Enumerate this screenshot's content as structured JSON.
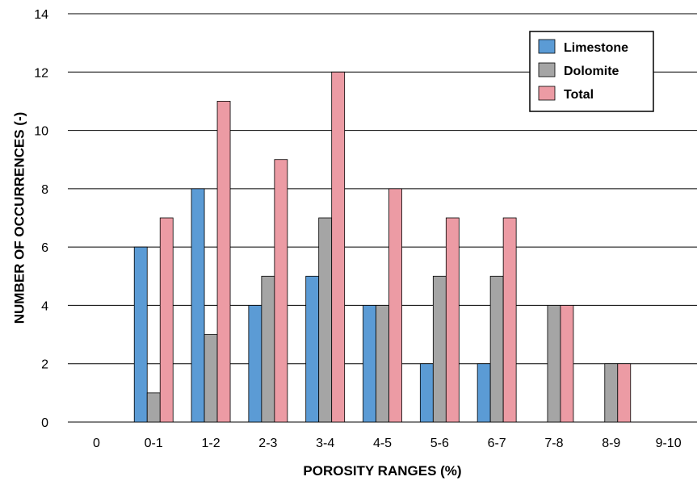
{
  "chart_data": {
    "type": "bar",
    "title": "",
    "xlabel": "POROSITY RANGES (%)",
    "ylabel": "NUMBER OF OCCURRENCES (-)",
    "ylim": [
      0,
      14
    ],
    "yticks": [
      0,
      2,
      4,
      6,
      8,
      10,
      12,
      14
    ],
    "grid": true,
    "legend_position": "top-right",
    "categories": [
      "0",
      "0-1",
      "1-2",
      "2-3",
      "3-4",
      "4-5",
      "5-6",
      "6-7",
      "7-8",
      "8-9",
      "9-10"
    ],
    "series": [
      {
        "name": "Limestone",
        "color": "#5b9bd5",
        "values": [
          0,
          6,
          8,
          4,
          5,
          4,
          2,
          2,
          0,
          0,
          0
        ]
      },
      {
        "name": "Dolomite",
        "color": "#a5a5a5",
        "values": [
          0,
          1,
          3,
          5,
          7,
          4,
          5,
          5,
          4,
          2,
          0
        ]
      },
      {
        "name": "Total",
        "color": "#ec9ba4",
        "values": [
          0,
          7,
          11,
          9,
          12,
          8,
          7,
          7,
          4,
          2,
          0
        ]
      }
    ]
  }
}
